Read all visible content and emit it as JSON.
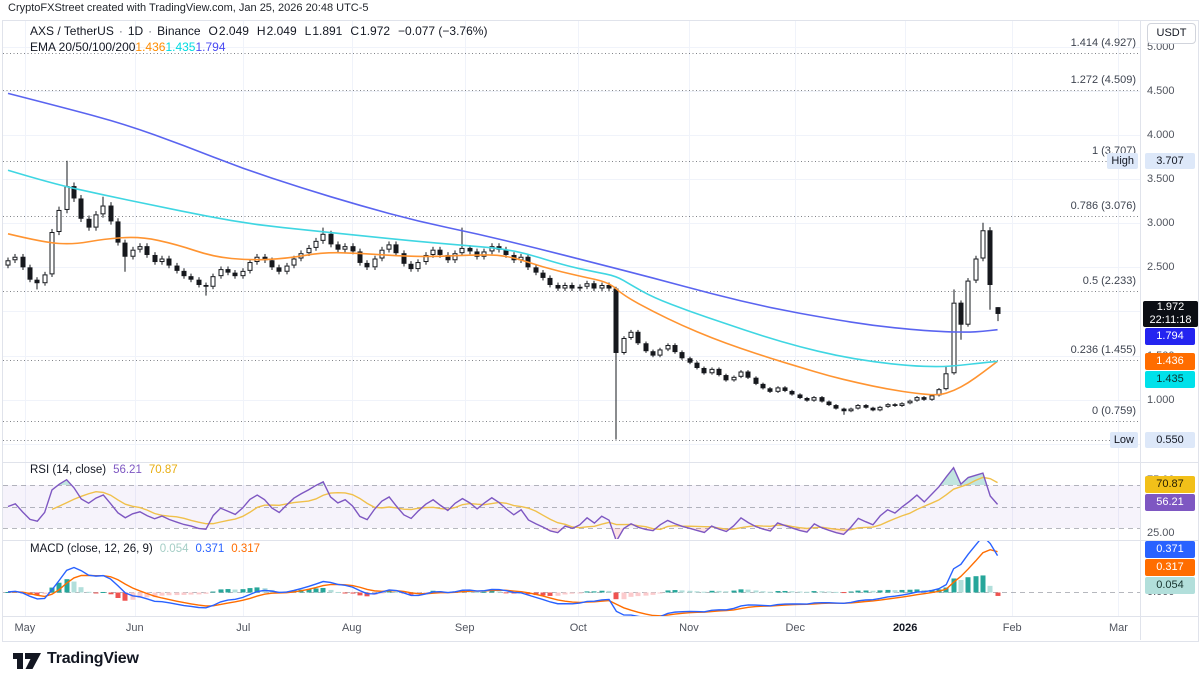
{
  "header": {
    "attribution": "CryptoFXStreet created with TradingView.com, Jan 25, 2026 20:48 UTC-5"
  },
  "legend": {
    "symbol": "AXS / TetherUS",
    "sep": "·",
    "interval": "1D",
    "exchange": "Binance",
    "ohlc": [
      {
        "k": "O",
        "v": "2.049"
      },
      {
        "k": "H",
        "v": "2.049"
      },
      {
        "k": "L",
        "v": "1.891"
      },
      {
        "k": "C",
        "v": "1.972"
      }
    ],
    "change": "−0.077 (−3.76%)",
    "ema_label": "EMA 20/50/100/200",
    "ema_values": [
      {
        "v": "1.436",
        "color": "#ff8c00"
      },
      {
        "v": "1.435",
        "color": "#00dbe0"
      },
      {
        "v": "1.794",
        "color": "#4a4af2"
      }
    ]
  },
  "rsi_pane": {
    "label": "RSI (14, close)",
    "values": [
      {
        "v": "56.21",
        "color": "#7e57c2"
      },
      {
        "v": "70.87",
        "color": "#e8ae12"
      }
    ]
  },
  "macd_pane": {
    "label": "MACD (close, 12, 26, 9)",
    "values": [
      {
        "v": "0.054",
        "color": "#a5cec6"
      },
      {
        "v": "0.371",
        "color": "#2962ff"
      },
      {
        "v": "0.317",
        "color": "#ff6d00"
      }
    ]
  },
  "price_axis": {
    "currency": "USDT",
    "ticks": [
      5.0,
      4.5,
      4.0,
      3.5,
      3.0,
      2.5,
      2.0,
      1.5,
      1.0,
      0.5
    ],
    "high_marker": {
      "label": "High",
      "value": "3.707",
      "price": 3.707
    },
    "low_marker": {
      "label": "Low",
      "value": "0.550",
      "price": 0.55
    },
    "last_price": {
      "value": "1.972",
      "countdown": "22:11:18",
      "price": 1.972,
      "bg": "#0b0e14",
      "fg": "#ffffff"
    },
    "ema_tags": [
      {
        "value": "1.794",
        "price": 1.794,
        "bg": "#2424f0",
        "fg": "#ffffff",
        "name": "ema-200-tag"
      },
      {
        "value": "1.436",
        "price": 1.436,
        "bg": "#ff6d00",
        "fg": "#ffffff",
        "name": "ema-20-tag"
      },
      {
        "value": "1.435",
        "price": 1.435,
        "bg": "#00e1ea",
        "fg": "#0d3330",
        "name": "ema-50-tag"
      }
    ]
  },
  "rsi_axis": {
    "ticks": [
      75.0,
      50.0,
      25.0
    ],
    "tags": [
      {
        "value": "70.87",
        "level": 70.87,
        "bg": "#f2c019",
        "fg": "#231a02",
        "name": "rsi-ma-tag"
      },
      {
        "value": "56.21",
        "level": 56.21,
        "bg": "#7e57c2",
        "fg": "#ffffff",
        "name": "rsi-tag"
      }
    ]
  },
  "macd_axis": {
    "ticks": [
      0.0
    ],
    "tags": [
      {
        "value": "0.371",
        "level": 0.371,
        "bg": "#2962ff",
        "fg": "#ffffff",
        "name": "macd-line-tag"
      },
      {
        "value": "0.317",
        "level": 0.317,
        "stack": true,
        "bg": "#ff6d00",
        "fg": "#ffffff",
        "name": "macd-signal-tag"
      },
      {
        "value": "0.054",
        "level": 0.054,
        "bg": "#b2dfdb",
        "fg": "#16332d",
        "name": "macd-hist-tag"
      }
    ]
  },
  "time_axis": {
    "months": [
      {
        "label": "May",
        "i": 2.3
      },
      {
        "label": "Jun",
        "i": 17.3
      },
      {
        "label": "Jul",
        "i": 32.1
      },
      {
        "label": "Aug",
        "i": 46.9
      },
      {
        "label": "Sep",
        "i": 62.3
      },
      {
        "label": "Oct",
        "i": 77.8
      },
      {
        "label": "Nov",
        "i": 92.9
      },
      {
        "label": "Dec",
        "i": 107.4
      },
      {
        "label": "2026",
        "i": 122.4,
        "bold": true
      },
      {
        "label": "Feb",
        "i": 137.0
      },
      {
        "label": "Mar",
        "i": 151.5
      }
    ]
  },
  "footer": {
    "brand": "TradingView"
  },
  "chart_data": {
    "type": "candlestick",
    "title": "AXS / TetherUS · 1D · Binance",
    "x_unit": "2-day candles, late Apr 2025 – Jan 25 2026",
    "visible_price_range": [
      0.29,
      5.3
    ],
    "high": 3.707,
    "low": 0.55,
    "fib_levels": [
      {
        "label": "1.414 (4.927)",
        "price": 4.927
      },
      {
        "label": "1.272 (4.509)",
        "price": 4.509
      },
      {
        "label": "1 (3.707)",
        "price": 3.707
      },
      {
        "label": "0.786 (3.076)",
        "price": 3.076
      },
      {
        "label": "0.5 (2.233)",
        "price": 2.233
      },
      {
        "label": "0.236 (1.455)",
        "price": 1.455
      },
      {
        "label": "0 (0.759)",
        "price": 0.759
      }
    ],
    "candle_colors": {
      "up": "#ffffff",
      "down": "#16181d",
      "border": "#16181d"
    },
    "candles_format": "[close, high, low, open] ; high/low/open optional, open defaults to previous close",
    "candles": [
      [
        2.58,
        null,
        null,
        2.52
      ],
      [
        2.62
      ],
      [
        2.5
      ],
      [
        2.36
      ],
      [
        2.32,
        null,
        2.25
      ],
      [
        2.42
      ],
      [
        2.9
      ],
      [
        3.15
      ],
      [
        3.42,
        3.707
      ],
      [
        3.28
      ],
      [
        3.05
      ],
      [
        2.95
      ],
      [
        3.1
      ],
      [
        3.2,
        3.3
      ],
      [
        3.02
      ],
      [
        2.78
      ],
      [
        2.62,
        null,
        2.45
      ],
      [
        2.7
      ],
      [
        2.74
      ],
      [
        2.64
      ],
      [
        2.56
      ],
      [
        2.6
      ],
      [
        2.52
      ],
      [
        2.46
      ],
      [
        2.4
      ],
      [
        2.36
      ],
      [
        2.3
      ],
      [
        2.28,
        null,
        2.18
      ],
      [
        2.4
      ],
      [
        2.48
      ],
      [
        2.44
      ],
      [
        2.4
      ],
      [
        2.46
      ],
      [
        2.56
      ],
      [
        2.62
      ],
      [
        2.58
      ],
      [
        2.5
      ],
      [
        2.45
      ],
      [
        2.52
      ],
      [
        2.6
      ],
      [
        2.66
      ],
      [
        2.72
      ],
      [
        2.8
      ],
      [
        2.88,
        2.95
      ],
      [
        2.76
      ],
      [
        2.7
      ],
      [
        2.74
      ],
      [
        2.68
      ],
      [
        2.55
      ],
      [
        2.5
      ],
      [
        2.6
      ],
      [
        2.7
      ],
      [
        2.76
      ],
      [
        2.66
      ],
      [
        2.54
      ],
      [
        2.48
      ],
      [
        2.56
      ],
      [
        2.64
      ],
      [
        2.7
      ],
      [
        2.64
      ],
      [
        2.58
      ],
      [
        2.66
      ],
      [
        2.72,
        2.95
      ],
      [
        2.68
      ],
      [
        2.62
      ],
      [
        2.68
      ],
      [
        2.74
      ],
      [
        2.7
      ],
      [
        2.64
      ],
      [
        2.58
      ],
      [
        2.62
      ],
      [
        2.5
      ],
      [
        2.44
      ],
      [
        2.38
      ],
      [
        2.3
      ],
      [
        2.26
      ],
      [
        2.3
      ],
      [
        2.26
      ],
      [
        2.28
      ],
      [
        2.32
      ],
      [
        2.26
      ],
      [
        2.3
      ],
      [
        2.26
      ],
      [
        1.53,
        2.28,
        0.55
      ],
      [
        1.7
      ],
      [
        1.77
      ],
      [
        1.64
      ],
      [
        1.55
      ],
      [
        1.5
      ],
      [
        1.57
      ],
      [
        1.62
      ],
      [
        1.54
      ],
      [
        1.47
      ],
      [
        1.42
      ],
      [
        1.36
      ],
      [
        1.3
      ],
      [
        1.35
      ],
      [
        1.28
      ],
      [
        1.22
      ],
      [
        1.26
      ],
      [
        1.32
      ],
      [
        1.25
      ],
      [
        1.18
      ],
      [
        1.13
      ],
      [
        1.09
      ],
      [
        1.14
      ],
      [
        1.1
      ],
      [
        1.06
      ],
      [
        1.02
      ],
      [
        0.99
      ],
      [
        1.03
      ],
      [
        0.98
      ],
      [
        0.94
      ],
      [
        0.9
      ],
      [
        0.87,
        null,
        0.83
      ],
      [
        0.9
      ],
      [
        0.94
      ],
      [
        0.91
      ],
      [
        0.88
      ],
      [
        0.92
      ],
      [
        0.95
      ],
      [
        0.93
      ],
      [
        0.96
      ],
      [
        0.99
      ],
      [
        1.03
      ],
      [
        1.0
      ],
      [
        1.05
      ],
      [
        1.12
      ],
      [
        1.3,
        1.38
      ],
      [
        2.1,
        2.25
      ],
      [
        1.85,
        null,
        1.68
      ],
      [
        2.35
      ],
      [
        2.6
      ],
      [
        2.92,
        3.005
      ],
      [
        2.3,
        null,
        2.02
      ],
      [
        1.972,
        2.049,
        1.891,
        2.049
      ]
    ],
    "ema_lines": [
      {
        "name": "EMA 20",
        "color": "#ff9431",
        "last_value": 1.436,
        "points": [
          [
            0,
            2.88
          ],
          [
            5,
            2.78
          ],
          [
            9,
            2.76
          ],
          [
            13,
            2.82
          ],
          [
            18,
            2.85
          ],
          [
            23,
            2.76
          ],
          [
            28,
            2.62
          ],
          [
            33,
            2.58
          ],
          [
            38,
            2.6
          ],
          [
            43,
            2.67
          ],
          [
            48,
            2.66
          ],
          [
            53,
            2.63
          ],
          [
            58,
            2.62
          ],
          [
            63,
            2.64
          ],
          [
            68,
            2.64
          ],
          [
            73,
            2.5
          ],
          [
            78,
            2.4
          ],
          [
            82,
            2.33
          ],
          [
            84,
            2.18
          ],
          [
            88,
            2.0
          ],
          [
            92,
            1.84
          ],
          [
            96,
            1.7
          ],
          [
            100,
            1.58
          ],
          [
            104,
            1.47
          ],
          [
            108,
            1.37
          ],
          [
            112,
            1.27
          ],
          [
            116,
            1.19
          ],
          [
            120,
            1.12
          ],
          [
            124,
            1.07
          ],
          [
            127,
            1.05
          ],
          [
            129,
            1.1
          ],
          [
            131,
            1.19
          ],
          [
            133,
            1.31
          ],
          [
            135,
            1.436
          ]
        ]
      },
      {
        "name": "EMA 50/100",
        "color": "#3fd6e2",
        "last_value": 1.435,
        "points": [
          [
            0,
            3.6
          ],
          [
            6,
            3.45
          ],
          [
            13,
            3.32
          ],
          [
            20,
            3.2
          ],
          [
            27,
            3.08
          ],
          [
            34,
            2.98
          ],
          [
            41,
            2.92
          ],
          [
            48,
            2.86
          ],
          [
            55,
            2.8
          ],
          [
            62,
            2.75
          ],
          [
            69,
            2.7
          ],
          [
            76,
            2.52
          ],
          [
            80,
            2.45
          ],
          [
            83,
            2.4
          ],
          [
            85,
            2.3
          ],
          [
            88,
            2.16
          ],
          [
            93,
            2.0
          ],
          [
            98,
            1.86
          ],
          [
            103,
            1.72
          ],
          [
            108,
            1.6
          ],
          [
            113,
            1.5
          ],
          [
            118,
            1.43
          ],
          [
            123,
            1.385
          ],
          [
            127,
            1.372
          ],
          [
            130,
            1.39
          ],
          [
            133,
            1.42
          ],
          [
            135,
            1.435
          ]
        ]
      },
      {
        "name": "EMA 200",
        "color": "#5a64f0",
        "last_value": 1.794,
        "points": [
          [
            0,
            4.47
          ],
          [
            8,
            4.3
          ],
          [
            16,
            4.12
          ],
          [
            24,
            3.88
          ],
          [
            32,
            3.62
          ],
          [
            40,
            3.4
          ],
          [
            48,
            3.2
          ],
          [
            56,
            3.02
          ],
          [
            64,
            2.88
          ],
          [
            72,
            2.72
          ],
          [
            80,
            2.55
          ],
          [
            88,
            2.38
          ],
          [
            96,
            2.2
          ],
          [
            104,
            2.04
          ],
          [
            112,
            1.92
          ],
          [
            118,
            1.84
          ],
          [
            124,
            1.79
          ],
          [
            128,
            1.77
          ],
          [
            131,
            1.765
          ],
          [
            133,
            1.775
          ],
          [
            135,
            1.794
          ]
        ]
      }
    ],
    "rsi": {
      "label": "RSI (14, close)",
      "period": 7,
      "ma_period": 7,
      "last": 56.21,
      "ma_last": 70.87,
      "levels": [
        70,
        50,
        30
      ],
      "color": "#7e57c2",
      "ma_color": "#f0c04b",
      "band_fill": "rgba(126,87,194,0.07)"
    },
    "macd": {
      "label": "MACD (close, 12, 26, 9)",
      "fast": 6,
      "slow": 13,
      "signal": 5,
      "last_hist": 0.054,
      "last_macd": 0.371,
      "last_signal": 0.317,
      "macd_color": "#2962ff",
      "signal_color": "#ff6d00",
      "hist_colors": {
        "pos_grow": "#26a69a",
        "pos_fall": "#b2dfdb",
        "neg_fall": "#ef5350",
        "neg_grow": "#fccbcd"
      }
    }
  }
}
